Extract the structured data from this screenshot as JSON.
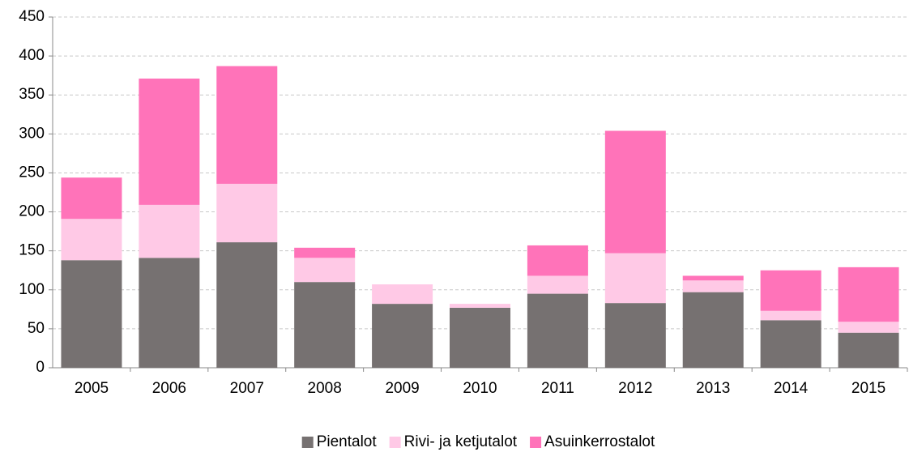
{
  "chart_data": {
    "type": "stacked_bar",
    "categories": [
      "2005",
      "2006",
      "2007",
      "2008",
      "2009",
      "2010",
      "2011",
      "2012",
      "2013",
      "2014",
      "2015"
    ],
    "series": [
      {
        "name": "Pientalot",
        "color": "#767171",
        "values": [
          138,
          141,
          161,
          110,
          82,
          77,
          95,
          83,
          97,
          61,
          45
        ]
      },
      {
        "name": "Rivi- ja ketjutalot",
        "color": "#ffc9e6",
        "values": [
          53,
          68,
          75,
          31,
          25,
          5,
          23,
          64,
          15,
          12,
          14
        ]
      },
      {
        "name": "Asuinkerrostalot",
        "color": "#ff73b9",
        "values": [
          53,
          162,
          151,
          13,
          0,
          0,
          39,
          157,
          6,
          52,
          70
        ]
      }
    ],
    "ylim": [
      0,
      450
    ],
    "yticks": [
      0,
      50,
      100,
      150,
      200,
      250,
      300,
      350,
      400,
      450
    ],
    "grid": true,
    "legend": "bottom"
  }
}
